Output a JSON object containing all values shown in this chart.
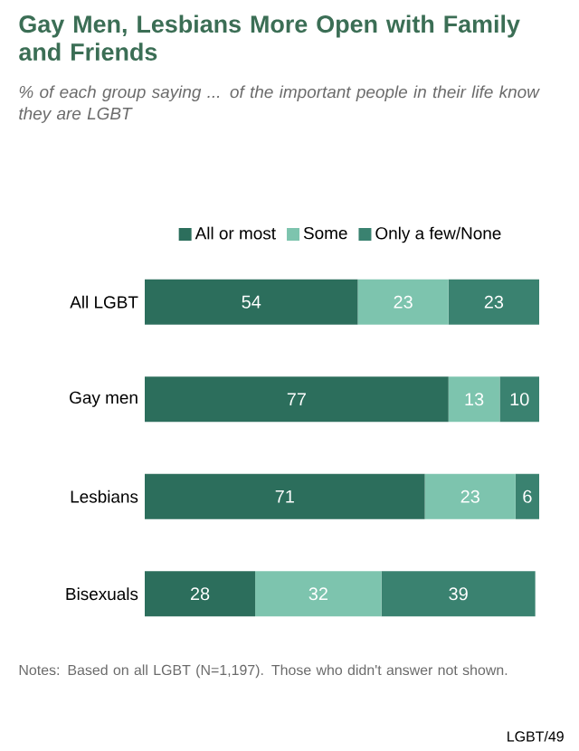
{
  "chart_data": {
    "type": "bar",
    "orientation": "horizontal",
    "stacked": true,
    "title": "Gay Men, Lesbians More Open with Family and Friends",
    "subtitle": "% of each group saying ... of the important people in their life know they are LGBT",
    "categories": [
      "All LGBT",
      "Gay men",
      "Lesbians",
      "Bisexuals"
    ],
    "series": [
      {
        "name": "All or most",
        "color": "#2c6e5c",
        "values": [
          54,
          77,
          71,
          28
        ]
      },
      {
        "name": "Some",
        "color": "#7dc4ae",
        "values": [
          23,
          13,
          23,
          32
        ]
      },
      {
        "name": "Only a few/None",
        "color": "#3a8270",
        "values": [
          23,
          10,
          6,
          39
        ]
      }
    ],
    "data_labels": true,
    "legend": "top",
    "tick_labels": "y",
    "annotations": [
      "Notes: Based on all LGBT (N=1,197). Those who didn't answer not shown.",
      "LGBT/49"
    ]
  }
}
